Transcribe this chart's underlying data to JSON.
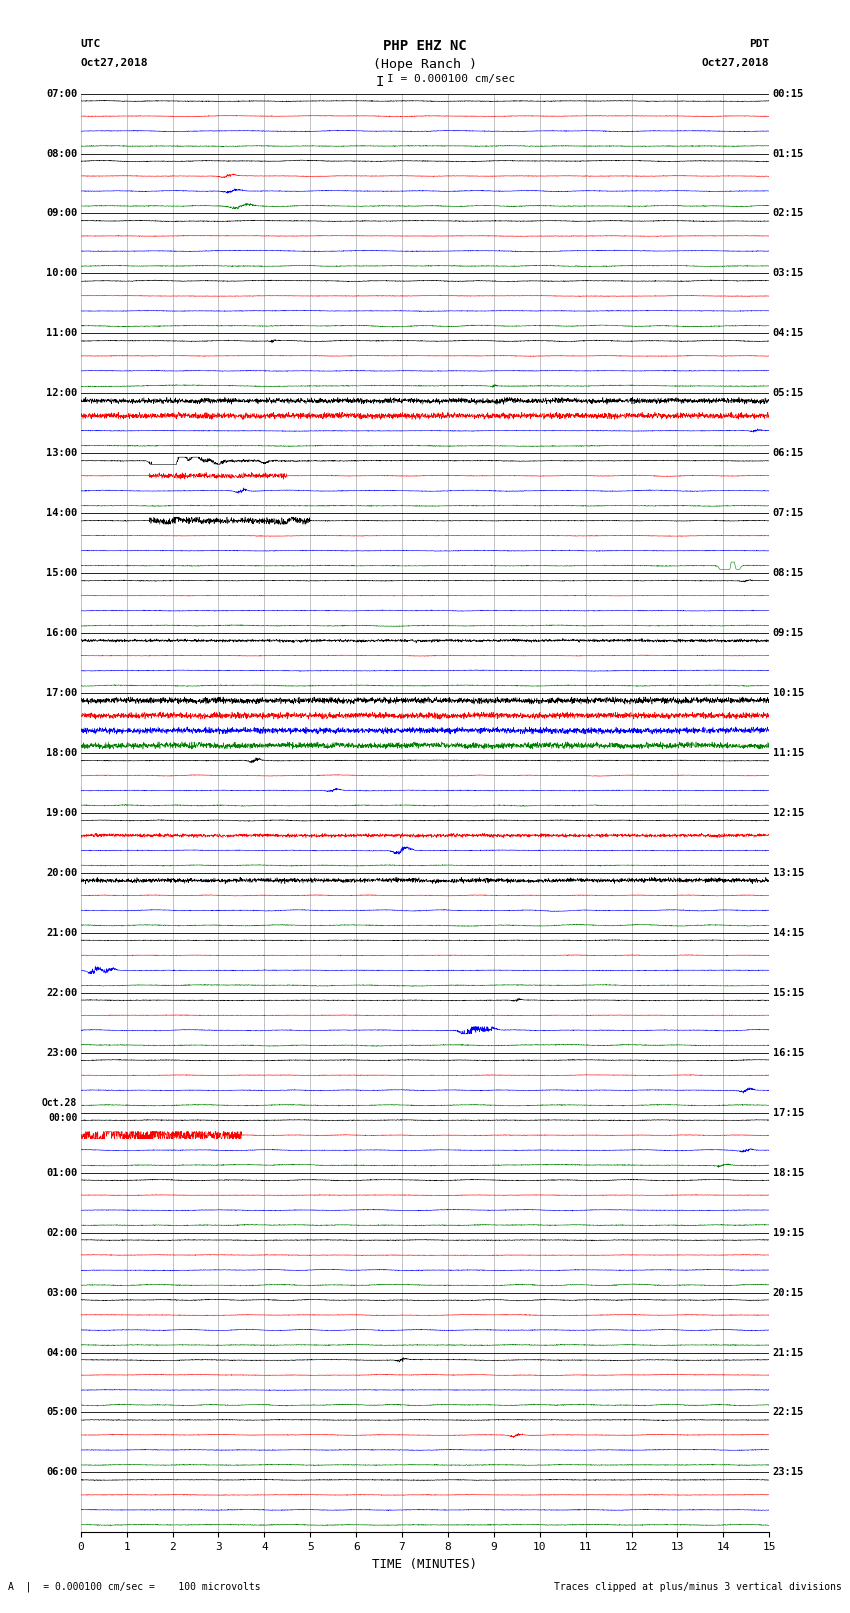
{
  "title_line1": "PHP EHZ NC",
  "title_line2": "(Hope Ranch )",
  "title_scale": "I = 0.000100 cm/sec",
  "left_label_top": "UTC",
  "left_label_date": "Oct27,2018",
  "right_label_top": "PDT",
  "right_label_date": "Oct27,2018",
  "bottom_label": "TIME (MINUTES)",
  "footer_left": "A  |  = 0.000100 cm/sec =    100 microvolts",
  "footer_right": "Traces clipped at plus/minus 3 vertical divisions",
  "utc_labels": [
    "07:00",
    "08:00",
    "09:00",
    "10:00",
    "11:00",
    "12:00",
    "13:00",
    "14:00",
    "15:00",
    "16:00",
    "17:00",
    "18:00",
    "19:00",
    "20:00",
    "21:00",
    "22:00",
    "23:00",
    "Oct.28\n00:00",
    "01:00",
    "02:00",
    "03:00",
    "04:00",
    "05:00",
    "06:00"
  ],
  "pdt_labels": [
    "00:15",
    "01:15",
    "02:15",
    "03:15",
    "04:15",
    "05:15",
    "06:15",
    "07:15",
    "08:15",
    "09:15",
    "10:15",
    "11:15",
    "12:15",
    "13:15",
    "14:15",
    "15:15",
    "16:15",
    "17:15",
    "18:15",
    "19:15",
    "20:15",
    "21:15",
    "22:15",
    "23:15"
  ],
  "trace_colors": [
    "black",
    "red",
    "blue",
    "green"
  ],
  "n_rows": 96,
  "n_cols": 15,
  "xmin": 0,
  "xmax": 15,
  "xticks": [
    0,
    1,
    2,
    3,
    4,
    5,
    6,
    7,
    8,
    9,
    10,
    11,
    12,
    13,
    14,
    15
  ],
  "background": "white",
  "grid_color": "#aaaaaa"
}
